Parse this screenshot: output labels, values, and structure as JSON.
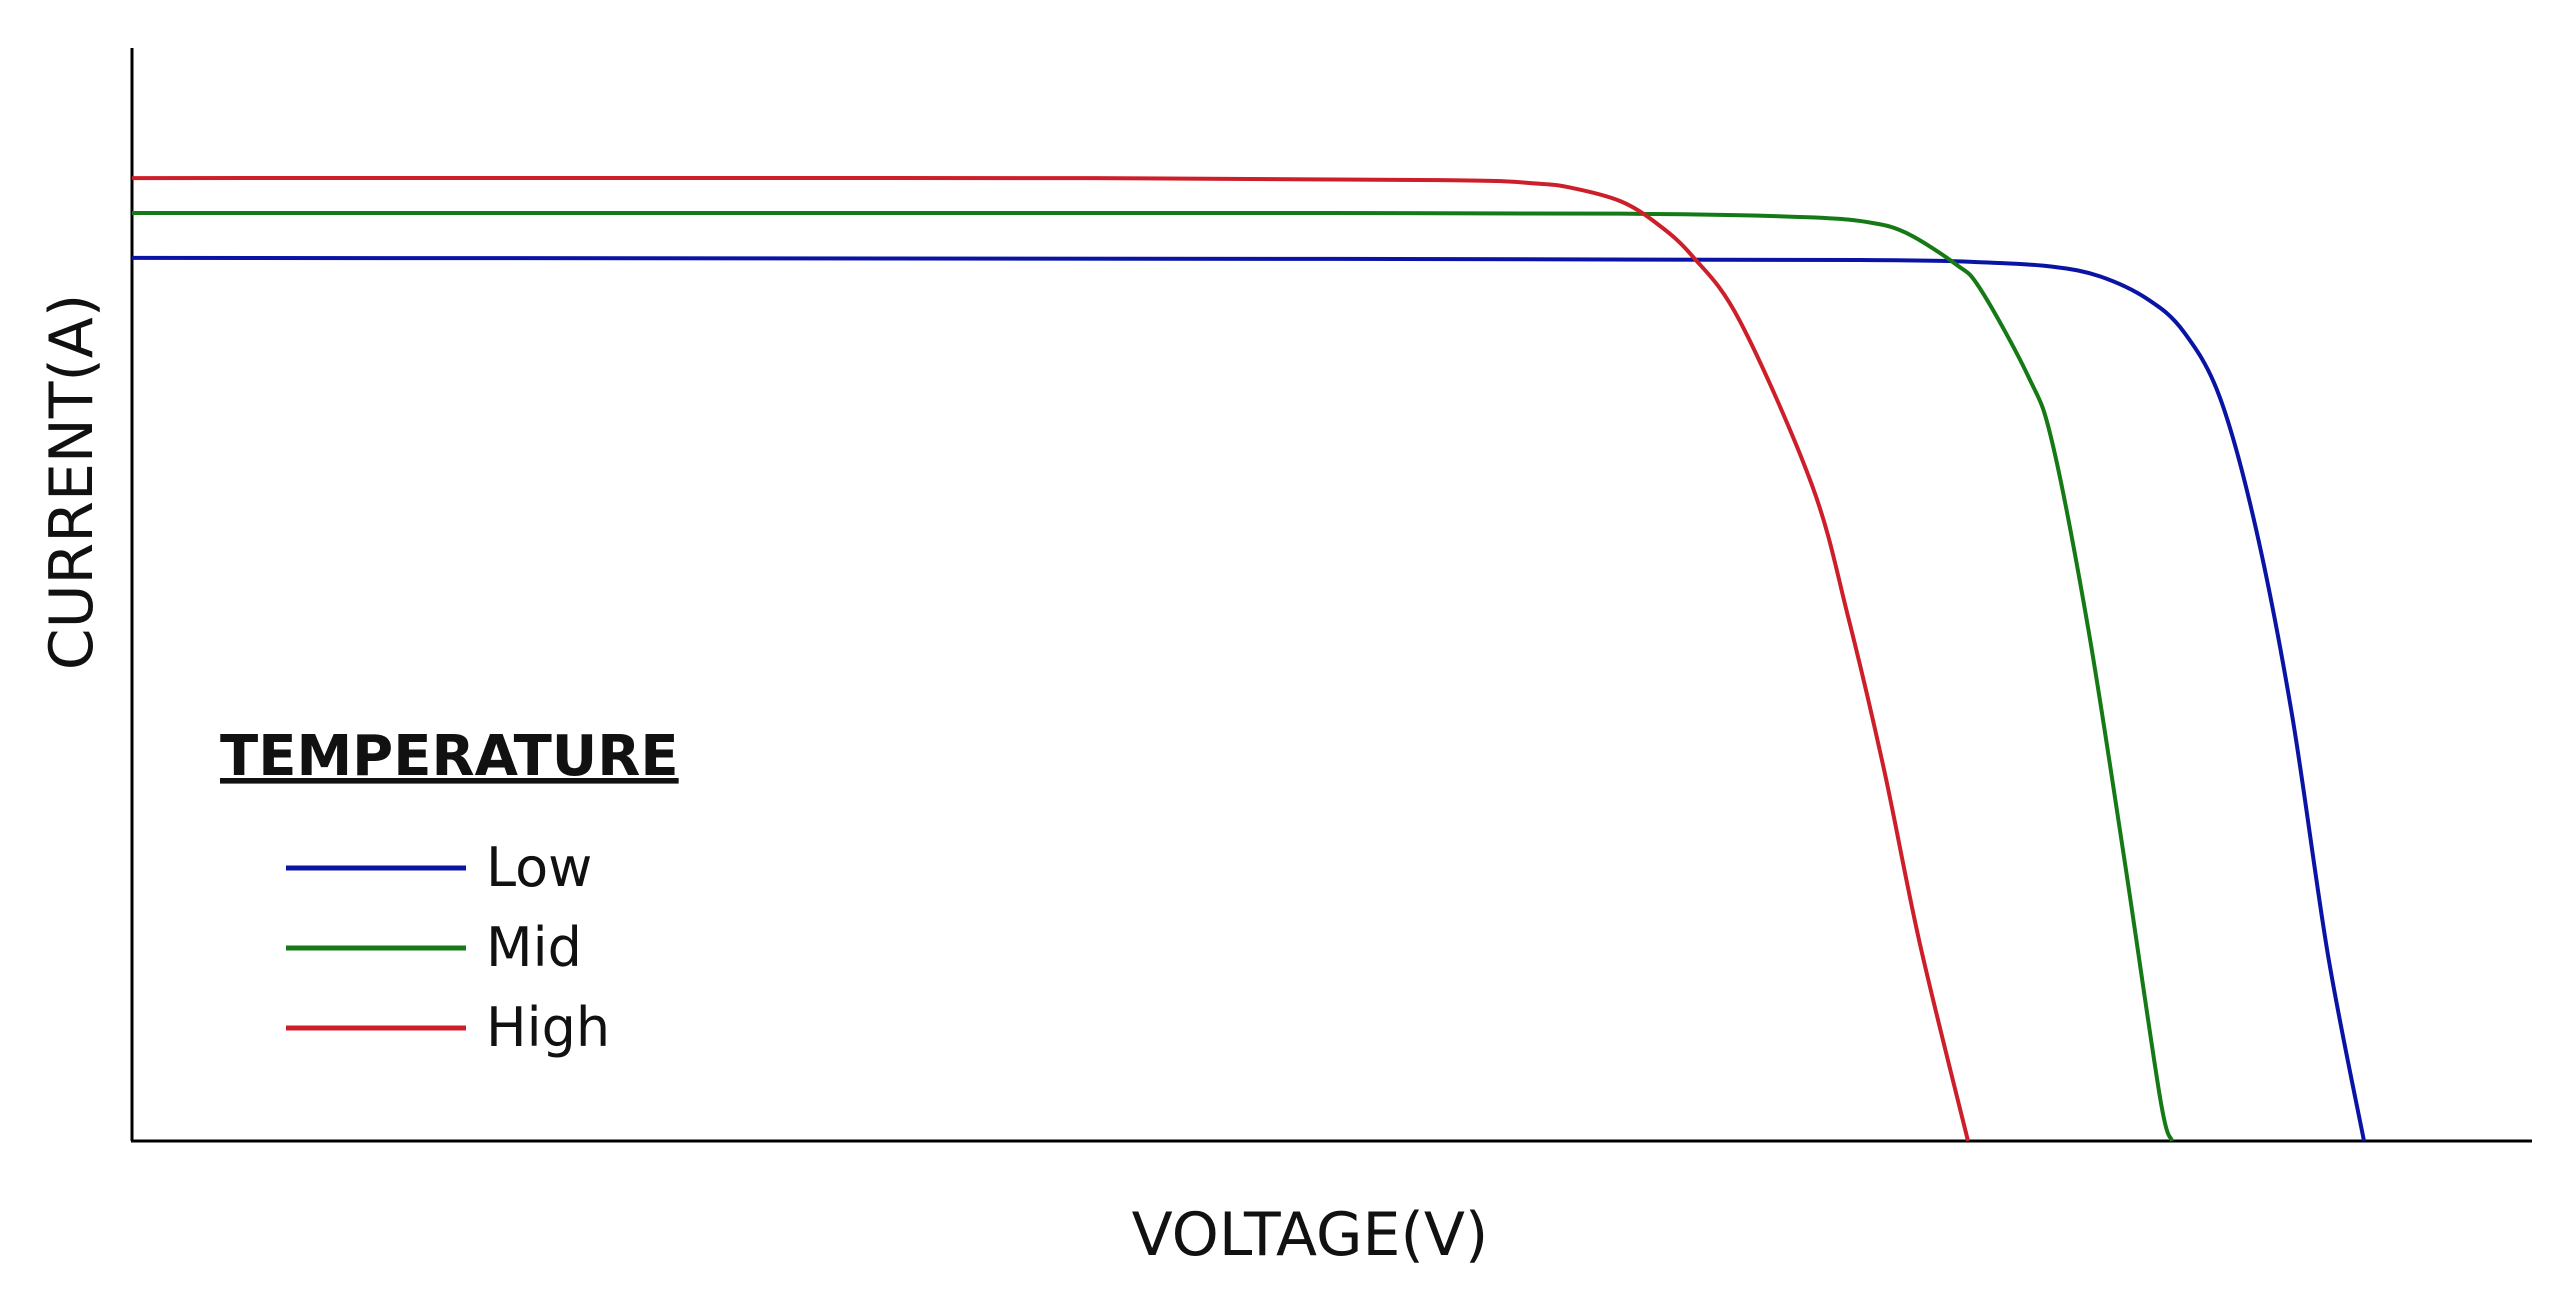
{
  "chart_data": {
    "type": "line",
    "xlabel": "VOLTAGE(V)",
    "ylabel": "CURRENT(A)",
    "xlim": [
      0,
      1
    ],
    "ylim": [
      0,
      1
    ],
    "grid": false,
    "legend": {
      "title": "TEMPERATURE",
      "placement": "bottom-left"
    },
    "series": [
      {
        "name": "Low",
        "color": "#0a14a4",
        "x": [
          0,
          0.5,
          0.72,
          0.77,
          0.8,
          0.82,
          0.84,
          0.855,
          0.87,
          0.885,
          0.9,
          0.915,
          0.93
        ],
        "y": [
          0.808,
          0.807,
          0.806,
          0.804,
          0.8,
          0.791,
          0.77,
          0.74,
          0.68,
          0.56,
          0.39,
          0.17,
          0
        ]
      },
      {
        "name": "Mid",
        "color": "#157a15",
        "x": [
          0,
          0.5,
          0.64,
          0.7,
          0.725,
          0.74,
          0.76,
          0.77,
          0.79,
          0.8,
          0.815,
          0.83,
          0.845,
          0.85
        ],
        "y": [
          0.849,
          0.849,
          0.848,
          0.845,
          0.84,
          0.83,
          0.802,
          0.78,
          0.7,
          0.64,
          0.47,
          0.26,
          0.04,
          0
        ]
      },
      {
        "name": "High",
        "color": "#cc1f2a",
        "x": [
          0,
          0.4,
          0.55,
          0.585,
          0.6,
          0.62,
          0.635,
          0.65,
          0.67,
          0.7,
          0.715,
          0.73,
          0.745,
          0.765
        ],
        "y": [
          0.881,
          0.881,
          0.879,
          0.876,
          0.872,
          0.86,
          0.84,
          0.81,
          0.75,
          0.6,
          0.48,
          0.34,
          0.18,
          0
        ]
      }
    ]
  }
}
